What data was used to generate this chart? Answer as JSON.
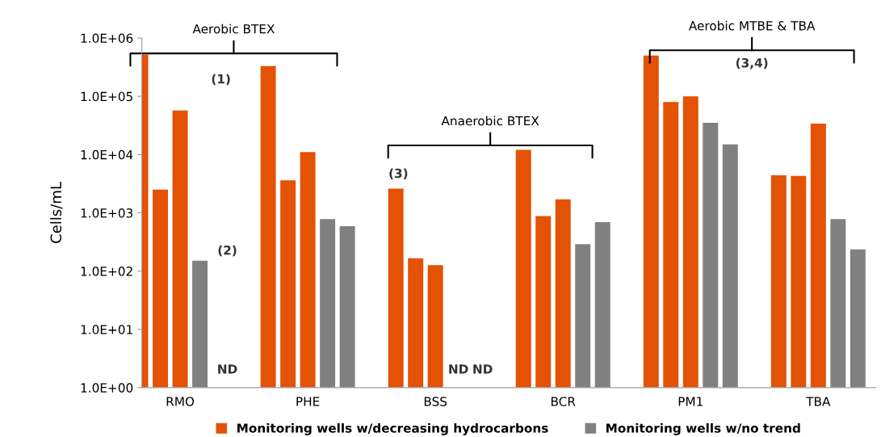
{
  "chart_data": {
    "type": "bar",
    "log": "y",
    "ylabel": "Cells/mL",
    "categories": [
      "RMO",
      "PHE",
      "BSS",
      "BCR",
      "PM1",
      "TBA"
    ],
    "series": [
      {
        "name": "Monitoring wells w/decreasing hydrocarbons",
        "color": "#e35205",
        "values": [
          520000,
          330000,
          2600,
          12000,
          500000,
          4400
        ]
      },
      {
        "color": "#e35205",
        "values": [
          2500,
          3600,
          165,
          880,
          80000,
          4300
        ]
      },
      {
        "color": "#e35205",
        "values": [
          57000,
          11000,
          125,
          1700,
          100000,
          34000
        ]
      },
      {
        "name": "Monitoring wells w/no trend",
        "color": "#808080",
        "values": [
          150,
          780,
          null,
          290,
          35000,
          780
        ]
      },
      {
        "color": "#808080",
        "values": [
          null,
          590,
          null,
          690,
          15000,
          235
        ]
      }
    ],
    "ylim": [
      1,
      1000000
    ],
    "yticks": [
      {
        "value": 1,
        "label": "1.0E+00"
      },
      {
        "value": 10,
        "label": "1.0E+01"
      },
      {
        "value": 100,
        "label": "1.0E+02"
      },
      {
        "value": 1000,
        "label": "1.0E+03"
      },
      {
        "value": 10000,
        "label": "1.0E+04"
      },
      {
        "value": 100000,
        "label": "1.0E+05"
      },
      {
        "value": 1000000,
        "label": "1.0E+06"
      }
    ],
    "annotations": [
      "Aerobic BTEX",
      "Anaerobic BTEX",
      "Aerobic MTBE & TBA",
      "(1)",
      "(2)",
      "(3)",
      "(3,4)",
      "ND",
      "ND",
      "ND"
    ],
    "grid": false,
    "legend": "bottom"
  }
}
